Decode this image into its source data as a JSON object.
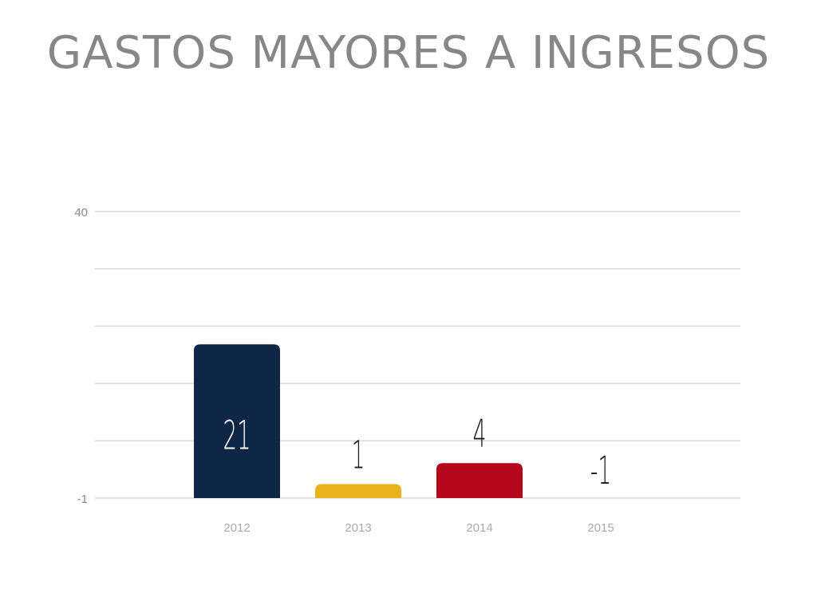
{
  "chart_data": {
    "type": "bar",
    "title": "GASTOS MAYORES A INGRESOS",
    "categories": [
      "2012",
      "2013",
      "2014",
      "2015"
    ],
    "values": [
      21,
      1,
      4,
      -1
    ],
    "data_labels": [
      "21",
      "1",
      "4",
      "-1"
    ],
    "colors": [
      "#0f2646",
      "#e8b21a",
      "#b5071a",
      "#b5071a"
    ],
    "ylim": [
      -1,
      40
    ],
    "yticks": [
      "40",
      "-1"
    ],
    "gridlines": 5,
    "grid": true,
    "legend": "none"
  }
}
